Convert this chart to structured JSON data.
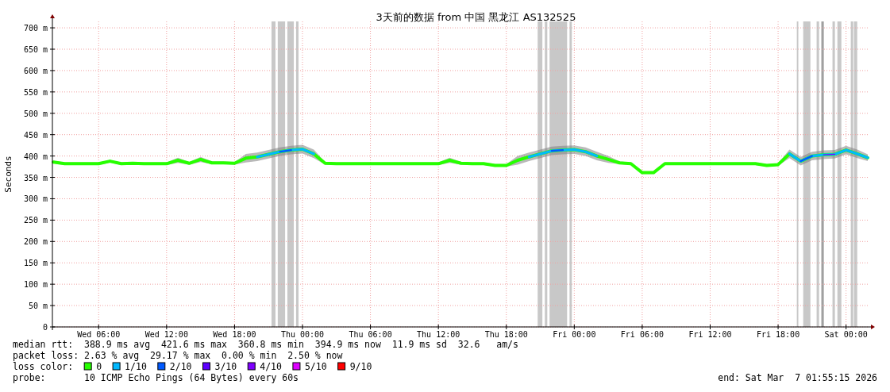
{
  "chart_data": {
    "type": "line",
    "title": "3天前的数据 from 中国 黑龙江 AS132525",
    "ylabel": "Seconds",
    "legend_title": "loss color:",
    "legend": "bottom",
    "grid": true,
    "xlim": [
      "2026-03-04T01:55",
      "2026-03-07T01:55"
    ],
    "ylim": [
      0,
      715
    ],
    "xticks": [
      {
        "value": "2026-03-04T06:00",
        "label": "Wed 06:00"
      },
      {
        "value": "2026-03-04T12:00",
        "label": "Wed 12:00"
      },
      {
        "value": "2026-03-04T18:00",
        "label": "Wed 18:00"
      },
      {
        "value": "2026-03-05T00:00",
        "label": "Thu 00:00"
      },
      {
        "value": "2026-03-05T06:00",
        "label": "Thu 06:00"
      },
      {
        "value": "2026-03-05T12:00",
        "label": "Thu 12:00"
      },
      {
        "value": "2026-03-05T18:00",
        "label": "Thu 18:00"
      },
      {
        "value": "2026-03-06T00:00",
        "label": "Fri 00:00"
      },
      {
        "value": "2026-03-06T06:00",
        "label": "Fri 06:00"
      },
      {
        "value": "2026-03-06T12:00",
        "label": "Fri 12:00"
      },
      {
        "value": "2026-03-06T18:00",
        "label": "Fri 18:00"
      },
      {
        "value": "2026-03-07T00:00",
        "label": "Sat 00:00"
      }
    ],
    "yticks": [
      0,
      {
        "value": 50,
        "label": "50 m"
      },
      {
        "value": 100,
        "label": "100 m"
      },
      {
        "value": 150,
        "label": "150 m"
      },
      {
        "value": 200,
        "label": "200 m"
      },
      {
        "value": 250,
        "label": "250 m"
      },
      {
        "value": 300,
        "label": "300 m"
      },
      {
        "value": 350,
        "label": "350 m"
      },
      {
        "value": 400,
        "label": "400 m"
      },
      {
        "value": 450,
        "label": "450 m"
      },
      {
        "value": 500,
        "label": "500 m"
      },
      {
        "value": 550,
        "label": "550 m"
      },
      {
        "value": 600,
        "label": "600 m"
      },
      {
        "value": 650,
        "label": "650 m"
      },
      {
        "value": 700,
        "label": "700 m"
      }
    ],
    "x": [
      "2026-03-04T02:00",
      "2026-03-04T03:00",
      "2026-03-04T04:00",
      "2026-03-04T05:00",
      "2026-03-04T06:00",
      "2026-03-04T07:00",
      "2026-03-04T08:00",
      "2026-03-04T09:00",
      "2026-03-04T10:00",
      "2026-03-04T11:00",
      "2026-03-04T12:00",
      "2026-03-04T13:00",
      "2026-03-04T14:00",
      "2026-03-04T15:00",
      "2026-03-04T16:00",
      "2026-03-04T17:00",
      "2026-03-04T18:00",
      "2026-03-04T19:00",
      "2026-03-04T20:00",
      "2026-03-04T21:00",
      "2026-03-04T22:00",
      "2026-03-04T23:00",
      "2026-03-05T00:00",
      "2026-03-05T01:00",
      "2026-03-05T02:00",
      "2026-03-05T03:00",
      "2026-03-05T04:00",
      "2026-03-05T05:00",
      "2026-03-05T06:00",
      "2026-03-05T07:00",
      "2026-03-05T08:00",
      "2026-03-05T09:00",
      "2026-03-05T10:00",
      "2026-03-05T11:00",
      "2026-03-05T12:00",
      "2026-03-05T13:00",
      "2026-03-05T14:00",
      "2026-03-05T15:00",
      "2026-03-05T16:00",
      "2026-03-05T17:00",
      "2026-03-05T18:00",
      "2026-03-05T19:00",
      "2026-03-05T20:00",
      "2026-03-05T21:00",
      "2026-03-05T22:00",
      "2026-03-05T23:00",
      "2026-03-06T00:00",
      "2026-03-06T01:00",
      "2026-03-06T02:00",
      "2026-03-06T03:00",
      "2026-03-06T04:00",
      "2026-03-06T05:00",
      "2026-03-06T06:00",
      "2026-03-06T07:00",
      "2026-03-06T08:00",
      "2026-03-06T09:00",
      "2026-03-06T10:00",
      "2026-03-06T11:00",
      "2026-03-06T12:00",
      "2026-03-06T13:00",
      "2026-03-06T14:00",
      "2026-03-06T15:00",
      "2026-03-06T16:00",
      "2026-03-06T17:00",
      "2026-03-06T18:00",
      "2026-03-06T19:00",
      "2026-03-06T20:00",
      "2026-03-06T21:00",
      "2026-03-06T22:00",
      "2026-03-06T23:00",
      "2026-03-07T00:00",
      "2026-03-07T01:00",
      "2026-03-07T01:55"
    ],
    "series": [
      {
        "name": "0",
        "color": "#26ff00",
        "values": [
          386,
          382,
          382,
          382,
          382,
          388,
          382,
          383,
          382,
          382,
          382,
          390,
          383,
          392,
          384,
          384,
          383,
          395,
          398,
          404,
          410,
          414,
          416,
          405,
          383,
          382,
          382,
          382,
          382,
          382,
          382,
          382,
          382,
          382,
          382,
          390,
          383,
          382,
          382,
          378,
          378,
          390,
          398,
          405,
          412,
          414,
          415,
          410,
          400,
          392,
          384,
          382,
          361,
          361,
          382,
          382,
          382,
          382,
          382,
          382,
          382,
          382,
          382,
          378,
          380,
          405,
          388,
          400,
          403,
          404,
          414,
          405,
          396
        ],
        "lower": [
          383,
          379,
          379,
          379,
          379,
          385,
          379,
          380,
          379,
          379,
          379,
          384,
          380,
          386,
          381,
          381,
          380,
          385,
          388,
          394,
          400,
          404,
          406,
          395,
          380,
          379,
          379,
          379,
          379,
          379,
          379,
          379,
          379,
          379,
          379,
          384,
          380,
          379,
          379,
          375,
          375,
          380,
          388,
          395,
          402,
          404,
          405,
          400,
          390,
          384,
          381,
          379,
          358,
          358,
          379,
          379,
          379,
          379,
          379,
          379,
          379,
          379,
          379,
          375,
          377,
          395,
          378,
          390,
          393,
          394,
          404,
          395,
          388
        ],
        "upper": [
          389,
          385,
          385,
          385,
          385,
          391,
          385,
          386,
          385,
          385,
          385,
          396,
          386,
          398,
          387,
          387,
          386,
          405,
          408,
          414,
          420,
          424,
          426,
          415,
          386,
          385,
          385,
          385,
          385,
          385,
          385,
          385,
          385,
          385,
          385,
          396,
          386,
          385,
          385,
          381,
          381,
          400,
          408,
          415,
          422,
          424,
          425,
          420,
          410,
          400,
          387,
          385,
          364,
          364,
          385,
          385,
          385,
          385,
          385,
          385,
          385,
          385,
          385,
          381,
          383,
          415,
          398,
          410,
          413,
          414,
          424,
          415,
          404
        ]
      },
      {
        "name": "1/10",
        "color": "#00b8ff",
        "x": [
          "2026-03-04T20:00",
          "2026-03-04T21:00",
          "2026-03-04T22:00",
          "2026-03-04T23:00",
          "2026-03-05T00:00",
          "2026-03-05T01:00",
          "2026-03-05T12:00",
          "2026-03-05T20:00",
          "2026-03-05T21:00",
          "2026-03-05T22:00",
          "2026-03-05T23:00",
          "2026-03-06T00:00",
          "2026-03-06T01:00",
          "2026-03-06T02:00",
          "2026-03-06T12:00",
          "2026-03-06T19:00",
          "2026-03-06T20:00",
          "2026-03-06T21:00",
          "2026-03-06T22:00",
          "2026-03-06T23:00",
          "2026-03-07T00:00",
          "2026-03-07T01:00",
          "2026-03-07T01:55"
        ],
        "values": [
          398,
          404,
          410,
          414,
          416,
          405,
          null,
          398,
          405,
          412,
          414,
          415,
          410,
          400,
          null,
          405,
          388,
          400,
          403,
          404,
          414,
          405,
          396
        ]
      },
      {
        "name": "2/10",
        "color": "#0059ff",
        "x": [
          "2026-03-04T22:00",
          "2026-03-04T23:00",
          "2026-03-05T12:00",
          "2026-03-05T22:00",
          "2026-03-05T23:00",
          "2026-03-06T12:00",
          "2026-03-06T20:00",
          "2026-03-06T21:00"
        ],
        "values": [
          410,
          414,
          null,
          412,
          414,
          null,
          388,
          400
        ]
      },
      {
        "name": "3/10",
        "color": "#5e00ff",
        "values": [
          null,
          null,
          null,
          null,
          null,
          null,
          null,
          null,
          null,
          null,
          null,
          null,
          null,
          null,
          null,
          null,
          null,
          null,
          null,
          null,
          null,
          null,
          null,
          null,
          null,
          null,
          null,
          null,
          null,
          null,
          null,
          null,
          null,
          null,
          null,
          null,
          null,
          null,
          null,
          null,
          null,
          null,
          null,
          null,
          null,
          null,
          null,
          null,
          null,
          null,
          null,
          null,
          null,
          null,
          null,
          null,
          null,
          null,
          null,
          null,
          null,
          null,
          null,
          null,
          null,
          null,
          null,
          null,
          null,
          null,
          null,
          null,
          null
        ]
      },
      {
        "name": "4/10",
        "color": "#7e00ff",
        "x": [
          "2026-03-06T22:00",
          "2026-03-06T23:00"
        ],
        "values": [
          403,
          404
        ]
      },
      {
        "name": "5/10",
        "color": "#dd00ff",
        "values": [
          null,
          null,
          null,
          null,
          null,
          null,
          null,
          null,
          null,
          null,
          null,
          null,
          null,
          null,
          null,
          null,
          null,
          null,
          null,
          null,
          null,
          null,
          null,
          null,
          null,
          null,
          null,
          null,
          null,
          null,
          null,
          null,
          null,
          null,
          null,
          null,
          null,
          null,
          null,
          null,
          null,
          null,
          null,
          null,
          null,
          null,
          null,
          null,
          null,
          null,
          null,
          null,
          null,
          null,
          null,
          null,
          null,
          null,
          null,
          null,
          null,
          null,
          null,
          null,
          null,
          null,
          null,
          null,
          null,
          null,
          null,
          null,
          null
        ]
      },
      {
        "name": "9/10",
        "color": "#ff0000",
        "values": [
          null,
          null,
          null,
          null,
          null,
          null,
          null,
          null,
          null,
          null,
          null,
          null,
          null,
          null,
          null,
          null,
          null,
          null,
          null,
          null,
          null,
          null,
          null,
          null,
          null,
          null,
          null,
          null,
          null,
          null,
          null,
          null,
          null,
          null,
          null,
          null,
          null,
          null,
          null,
          null,
          null,
          null,
          null,
          null,
          null,
          null,
          null,
          null,
          null,
          null,
          null,
          null,
          null,
          null,
          null,
          null,
          null,
          null,
          null,
          null,
          null,
          null,
          null,
          null,
          null,
          null,
          null,
          null,
          null,
          null,
          null,
          null,
          null
        ]
      }
    ],
    "bands": [
      {
        "axis": "x",
        "from": "2026-03-04T21:16",
        "to": "2026-03-04T21:37",
        "color": "#c8c8c8"
      },
      {
        "axis": "x",
        "from": "2026-03-04T21:49",
        "to": "2026-03-04T22:28",
        "color": "#c8c8c8"
      },
      {
        "axis": "x",
        "from": "2026-03-04T22:40",
        "to": "2026-03-04T23:14",
        "color": "#c8c8c8"
      },
      {
        "axis": "x",
        "from": "2026-03-04T23:26",
        "to": "2026-03-04T23:39",
        "color": "#c8c8c8"
      },
      {
        "axis": "x",
        "from": "2026-03-05T20:46",
        "to": "2026-03-05T21:11",
        "color": "#c8c8c8"
      },
      {
        "axis": "x",
        "from": "2026-03-05T21:24",
        "to": "2026-03-05T21:37",
        "color": "#c8c8c8"
      },
      {
        "axis": "x",
        "from": "2026-03-05T21:49",
        "to": "2026-03-05T23:22",
        "color": "#c8c8c8"
      },
      {
        "axis": "x",
        "from": "2026-03-05T23:35",
        "to": "2026-03-05T23:47",
        "color": "#c8c8c8"
      },
      {
        "axis": "x",
        "from": "2026-03-06T19:39",
        "to": "2026-03-06T19:47",
        "color": "#c8c8c8"
      },
      {
        "axis": "x",
        "from": "2026-03-06T20:13",
        "to": "2026-03-06T20:51",
        "color": "#c8c8c8"
      },
      {
        "axis": "x",
        "from": "2026-03-06T21:24",
        "to": "2026-03-06T21:37",
        "color": "#c8c8c8"
      },
      {
        "axis": "x",
        "from": "2026-03-06T21:49",
        "to": "2026-03-06T22:02",
        "color": "#a0a0a0"
      },
      {
        "axis": "x",
        "from": "2026-03-06T22:48",
        "to": "2026-03-06T23:01",
        "color": "#c8c8c8"
      },
      {
        "axis": "x",
        "from": "2026-03-06T23:14",
        "to": "2026-03-06T23:35",
        "color": "#c8c8c8"
      },
      {
        "axis": "x",
        "from": "2026-03-07T00:25",
        "to": "2026-03-07T00:38",
        "color": "#c8c8c8"
      },
      {
        "axis": "x",
        "from": "2026-03-07T00:42",
        "to": "2026-03-07T00:59",
        "color": "#c8c8c8"
      }
    ],
    "annotations": [
      "median rtt:  388.9 ms avg  421.6 ms max  360.8 ms min  394.9 ms now  11.9 ms sd  32.6   am/s",
      "packet loss: 2.63 % avg  29.17 % max  0.00 % min  2.50 % now",
      "probe:       10 ICMP Echo Pings (64 Bytes) every 60s",
      "end: Sat Mar  7 01:55:15 2026"
    ]
  }
}
